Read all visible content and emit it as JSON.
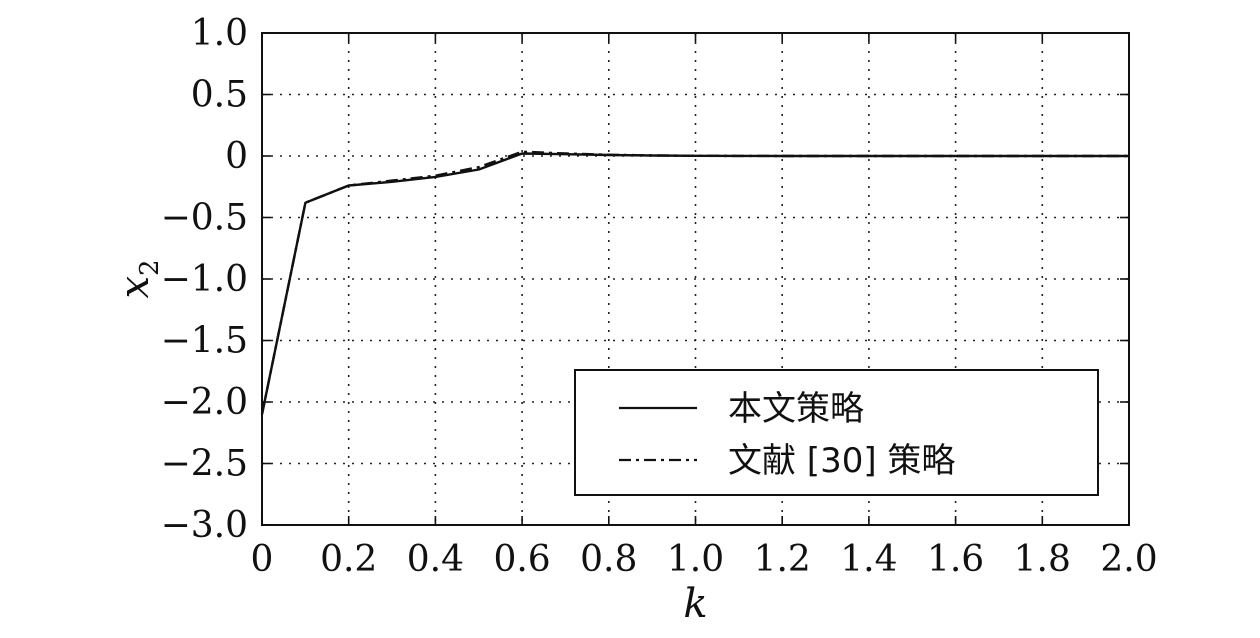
{
  "chart_data": {
    "type": "line",
    "xlabel": "k",
    "ylabel": "x",
    "ylabel_sub": "2",
    "xlim": [
      0,
      2.0
    ],
    "ylim": [
      -3.0,
      1.0
    ],
    "xticks": [
      0,
      0.2,
      0.4,
      0.6,
      0.8,
      1.0,
      1.2,
      1.4,
      1.6,
      1.8,
      2.0
    ],
    "xtick_labels": [
      "0",
      "0.2",
      "0.4",
      "0.6",
      "0.8",
      "1.0",
      "1.2",
      "1.4",
      "1.6",
      "1.8",
      "2.0"
    ],
    "yticks": [
      1.0,
      0.5,
      0,
      -0.5,
      -1.0,
      -1.5,
      -2.0,
      -2.5,
      -3.0
    ],
    "ytick_labels": [
      "1.0",
      "0.5",
      "0",
      "−0.5",
      "−1.0",
      "−1.5",
      "−2.0",
      "−2.5",
      "−3.0"
    ],
    "grid": true,
    "legend_position": "lower-right",
    "series": [
      {
        "name": "本文策略",
        "style": "solid",
        "color": "#111111",
        "x": [
          0,
          0.1,
          0.2,
          0.3,
          0.4,
          0.5,
          0.6,
          0.7,
          0.8,
          0.9,
          1.0,
          1.1,
          1.2,
          1.4,
          1.6,
          1.8,
          2.0
        ],
        "y": [
          -2.1,
          -0.38,
          -0.24,
          -0.21,
          -0.17,
          -0.11,
          0.02,
          0.015,
          0.008,
          0.004,
          0.002,
          0.001,
          0.0,
          0.0,
          0.0,
          0.0,
          0.0
        ]
      },
      {
        "name": "文献 [30] 策略",
        "style": "dashdot",
        "color": "#111111",
        "x": [
          0,
          0.1,
          0.2,
          0.3,
          0.4,
          0.5,
          0.6,
          0.7,
          0.8,
          0.9,
          1.0,
          1.1,
          1.2,
          1.4,
          1.6,
          1.8,
          2.0
        ],
        "y": [
          -2.1,
          -0.38,
          -0.24,
          -0.2,
          -0.16,
          -0.09,
          0.035,
          0.02,
          0.01,
          0.005,
          0.002,
          0.001,
          0.0,
          0.0,
          0.0,
          0.0,
          0.0
        ]
      }
    ]
  }
}
